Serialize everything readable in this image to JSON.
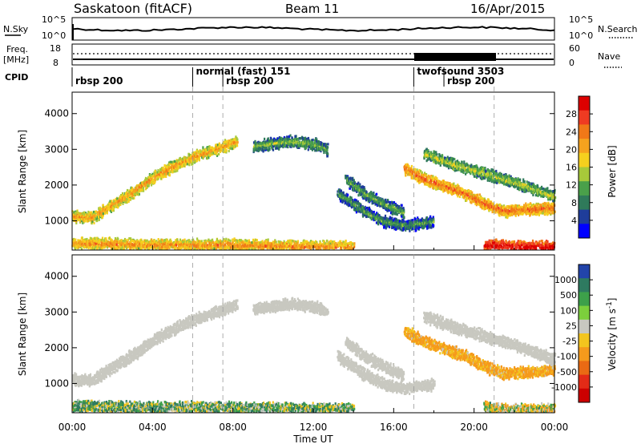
{
  "header": {
    "station": "Saskatoon (fitACF)",
    "beam": "Beam 11",
    "date": "16/Apr/2015"
  },
  "noise_panel": {
    "left_label": "N.Sky",
    "left_ticks": [
      "10^5",
      "10^0"
    ],
    "right_label": "N.Search",
    "right_ticks": [
      "10^5",
      "10^0"
    ]
  },
  "freq_panel": {
    "left_label_line1": "Freq.",
    "left_label_line2": "[MHz]",
    "left_ticks": [
      "18",
      "8"
    ],
    "right_label": "Nave",
    "right_ticks": [
      "60",
      "0"
    ]
  },
  "cpid_panel": {
    "label": "CPID",
    "segments": [
      {
        "text": "rbsp 200",
        "row": 1,
        "start_h": 0
      },
      {
        "text": "normal (fast) 151",
        "row": 0,
        "start_h": 6.0
      },
      {
        "text": "rbsp 200",
        "row": 1,
        "start_h": 7.5
      },
      {
        "text": "twofsound 3503",
        "row": 0,
        "start_h": 17.0
      },
      {
        "text": "rbsp 200",
        "row": 1,
        "start_h": 18.5
      }
    ]
  },
  "colors": {
    "power": [
      "#0000ff",
      "#1f3d9a",
      "#2f7a5a",
      "#4aa04a",
      "#a7c93a",
      "#f5d01e",
      "#f5a21e",
      "#f07818",
      "#ef3b22",
      "#dd0000"
    ],
    "velocity": [
      "#2244aa",
      "#2e7a60",
      "#3da04a",
      "#7ccf3c",
      "#c8c8c0",
      "#f3c51e",
      "#f59a1c",
      "#ea6a14",
      "#e32b17",
      "#cc0000"
    ]
  },
  "chart_data": [
    {
      "type": "heatmap",
      "title": "Power",
      "xlabel": "",
      "ylabel": "Slant Range [km]",
      "x_ticks": [
        "00:00",
        "04:00",
        "08:00",
        "12:00",
        "16:00",
        "20:00",
        "00:00"
      ],
      "xlim_hours": [
        0,
        24
      ],
      "ylim_km": [
        180,
        4600
      ],
      "y_ticks": [
        1000,
        2000,
        3000,
        4000
      ],
      "colorbar": {
        "label": "Power [dB]",
        "ticks": [
          "4",
          "8",
          "12",
          "16",
          "20",
          "24",
          "28"
        ],
        "range": [
          0,
          30
        ]
      },
      "bands": [
        {
          "points": [
            [
              0,
              1150
            ],
            [
              1,
              1120
            ],
            [
              2.2,
              1550
            ],
            [
              3.2,
              1900
            ],
            [
              4.2,
              2300
            ],
            [
              5.2,
              2600
            ],
            [
              6.2,
              2850
            ],
            [
              7.5,
              3100
            ],
            [
              8.2,
              3250
            ]
          ],
          "value_center": 17
        },
        {
          "points": [
            [
              9,
              3100
            ],
            [
              10,
              3200
            ],
            [
              11,
              3250
            ],
            [
              12.2,
              3150
            ],
            [
              12.7,
              3000
            ]
          ],
          "value_center": 9
        },
        {
          "points": [
            [
              0,
              400
            ],
            [
              4,
              350
            ],
            [
              8,
              350
            ],
            [
              12,
              300
            ],
            [
              14,
              300
            ]
          ],
          "value_center": 18
        },
        {
          "points": [
            [
              13.2,
              1800
            ],
            [
              14.5,
              1300
            ],
            [
              15.5,
              1000
            ],
            [
              16.5,
              900
            ],
            [
              18,
              1000
            ]
          ],
          "value_center": 7
        },
        {
          "points": [
            [
              13.6,
              2200
            ],
            [
              14.5,
              1800
            ],
            [
              15.5,
              1500
            ],
            [
              16.5,
              1250
            ]
          ],
          "value_center": 8
        },
        {
          "points": [
            [
              16.5,
              2500
            ],
            [
              17.5,
              2200
            ],
            [
              18.5,
              2000
            ],
            [
              19.5,
              1800
            ],
            [
              20.5,
              1500
            ],
            [
              21.5,
              1300
            ],
            [
              24,
              1400
            ]
          ],
          "value_center": 20
        },
        {
          "points": [
            [
              17.5,
              2900
            ],
            [
              19,
              2600
            ],
            [
              20.5,
              2350
            ],
            [
              22,
              2100
            ],
            [
              24,
              1700
            ]
          ],
          "value_center": 11
        },
        {
          "points": [
            [
              20.5,
              350
            ],
            [
              22,
              300
            ],
            [
              24,
              300
            ]
          ],
          "value_center": 26
        }
      ]
    },
    {
      "type": "heatmap",
      "title": "Velocity",
      "xlabel": "Time UT",
      "ylabel": "Slant Range [km]",
      "x_ticks": [
        "00:00",
        "04:00",
        "08:00",
        "12:00",
        "16:00",
        "20:00",
        "00:00"
      ],
      "xlim_hours": [
        0,
        24
      ],
      "ylim_km": [
        180,
        4600
      ],
      "y_ticks": [
        1000,
        2000,
        3000,
        4000
      ],
      "colorbar": {
        "label": "Velocity [m s^-1]",
        "ticks": [
          "1000",
          "500",
          "100",
          "25",
          "-25",
          "-100",
          "-500",
          "-1000"
        ],
        "range": [
          1000,
          -1000
        ]
      },
      "bands": [
        {
          "points": [
            [
              0,
              1150
            ],
            [
              1,
              1120
            ],
            [
              2.2,
              1550
            ],
            [
              3.2,
              1900
            ],
            [
              4.2,
              2300
            ],
            [
              5.2,
              2600
            ],
            [
              6.2,
              2850
            ],
            [
              7.5,
              3100
            ],
            [
              8.2,
              3250
            ]
          ],
          "value_center": 0
        },
        {
          "points": [
            [
              9,
              3100
            ],
            [
              10,
              3200
            ],
            [
              11,
              3250
            ],
            [
              12.2,
              3150
            ],
            [
              12.7,
              3000
            ]
          ],
          "value_center": 0
        },
        {
          "points": [
            [
              0,
              400
            ],
            [
              4,
              350
            ],
            [
              8,
              350
            ],
            [
              12,
              300
            ],
            [
              14,
              300
            ]
          ],
          "value_center": 60
        },
        {
          "points": [
            [
              13.2,
              1800
            ],
            [
              14.5,
              1300
            ],
            [
              15.5,
              1000
            ],
            [
              16.5,
              900
            ],
            [
              18,
              1000
            ]
          ],
          "value_center": 0
        },
        {
          "points": [
            [
              13.6,
              2200
            ],
            [
              14.5,
              1800
            ],
            [
              15.5,
              1500
            ],
            [
              16.5,
              1250
            ]
          ],
          "value_center": 0
        },
        {
          "points": [
            [
              16.5,
              2500
            ],
            [
              17.5,
              2200
            ],
            [
              18.5,
              2000
            ],
            [
              19.5,
              1800
            ],
            [
              20.5,
              1500
            ],
            [
              21.5,
              1300
            ],
            [
              24,
              1400
            ]
          ],
          "value_center": -150
        },
        {
          "points": [
            [
              17.5,
              2900
            ],
            [
              19,
              2600
            ],
            [
              20.5,
              2350
            ],
            [
              22,
              2100
            ],
            [
              24,
              1700
            ]
          ],
          "value_center": 0
        },
        {
          "points": [
            [
              20.5,
              350
            ],
            [
              22,
              300
            ],
            [
              24,
              300
            ]
          ],
          "value_center": -40
        }
      ]
    }
  ]
}
